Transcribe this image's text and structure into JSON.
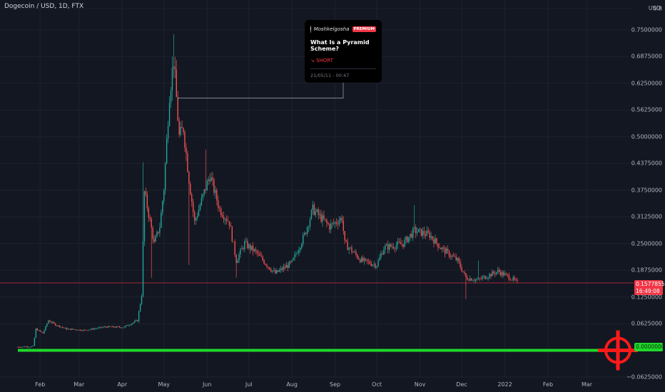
{
  "header": {
    "symbol_title": "Dogecoin / USD, 1D, FTX",
    "currency": "USD"
  },
  "price_tag": {
    "price": "0.1577855",
    "countdown": "16:49:08"
  },
  "support_tag": {
    "price": "0.0000000"
  },
  "idea": {
    "author": "Moshkelgosha",
    "badge": "PREMIUM",
    "title": "What Is a Pyramid Scheme?",
    "direction": "↘ SHORT",
    "date": "21/05/11 - 00:47"
  },
  "colors": {
    "background": "#131722",
    "up": "#26a69a",
    "down": "#ef5350",
    "support_line": "#1fd82a",
    "target_icon": "#ff1a1a",
    "price_line": "#f23645"
  },
  "icons": {
    "target": "crosshair-target-icon",
    "avatar": "user-avatar-icon"
  },
  "chart_data": {
    "type": "candlestick",
    "title": "Dogecoin / USD, 1D, FTX",
    "ylim": [
      -0.0625,
      0.8
    ],
    "y_ticks": [
      "0.8",
      "0.7500000",
      "0.6875000",
      "0.6250000",
      "0.5625000",
      "0.5000000",
      "0.4375000",
      "0.3750000",
      "0.3125000",
      "0.2500000",
      "0.1875000",
      "0.1250000",
      "0.0625000",
      "−0.0625000"
    ],
    "x_ticks": [
      "Feb",
      "Mar",
      "Apr",
      "May",
      "Jun",
      "Jul",
      "Aug",
      "Sep",
      "Oct",
      "Nov",
      "Dec",
      "2022",
      "Feb",
      "Mar"
    ],
    "current_price": 0.1577855,
    "support_level": 0.0,
    "anchors": [
      {
        "d": "2021-01-16",
        "p": 0.008
      },
      {
        "d": "2021-01-27",
        "p": 0.009
      },
      {
        "d": "2021-01-29",
        "p": 0.05
      },
      {
        "d": "2021-02-03",
        "p": 0.04
      },
      {
        "d": "2021-02-07",
        "p": 0.07
      },
      {
        "d": "2021-02-12",
        "p": 0.06
      },
      {
        "d": "2021-02-20",
        "p": 0.05
      },
      {
        "d": "2021-03-05",
        "p": 0.047
      },
      {
        "d": "2021-03-20",
        "p": 0.055
      },
      {
        "d": "2021-04-02",
        "p": 0.054
      },
      {
        "d": "2021-04-12",
        "p": 0.07
      },
      {
        "d": "2021-04-15",
        "p": 0.13
      },
      {
        "d": "2021-04-17",
        "p": 0.37
      },
      {
        "d": "2021-04-20",
        "p": 0.32
      },
      {
        "d": "2021-04-24",
        "p": 0.25
      },
      {
        "d": "2021-04-28",
        "p": 0.29
      },
      {
        "d": "2021-05-01",
        "p": 0.38
      },
      {
        "d": "2021-05-05",
        "p": 0.6
      },
      {
        "d": "2021-05-08",
        "p": 0.68
      },
      {
        "d": "2021-05-12",
        "p": 0.5
      },
      {
        "d": "2021-05-15",
        "p": 0.52
      },
      {
        "d": "2021-05-19",
        "p": 0.4
      },
      {
        "d": "2021-05-23",
        "p": 0.3
      },
      {
        "d": "2021-05-27",
        "p": 0.34
      },
      {
        "d": "2021-06-03",
        "p": 0.41
      },
      {
        "d": "2021-06-10",
        "p": 0.33
      },
      {
        "d": "2021-06-17",
        "p": 0.3
      },
      {
        "d": "2021-06-22",
        "p": 0.21
      },
      {
        "d": "2021-06-28",
        "p": 0.25
      },
      {
        "d": "2021-07-06",
        "p": 0.23
      },
      {
        "d": "2021-07-14",
        "p": 0.2
      },
      {
        "d": "2021-07-20",
        "p": 0.18
      },
      {
        "d": "2021-08-01",
        "p": 0.205
      },
      {
        "d": "2021-08-10",
        "p": 0.27
      },
      {
        "d": "2021-08-16",
        "p": 0.33
      },
      {
        "d": "2021-08-28",
        "p": 0.29
      },
      {
        "d": "2021-09-06",
        "p": 0.31
      },
      {
        "d": "2021-09-08",
        "p": 0.25
      },
      {
        "d": "2021-09-20",
        "p": 0.21
      },
      {
        "d": "2021-10-01",
        "p": 0.2
      },
      {
        "d": "2021-10-06",
        "p": 0.24
      },
      {
        "d": "2021-10-20",
        "p": 0.25
      },
      {
        "d": "2021-10-28",
        "p": 0.28
      },
      {
        "d": "2021-11-08",
        "p": 0.27
      },
      {
        "d": "2021-11-16",
        "p": 0.24
      },
      {
        "d": "2021-11-28",
        "p": 0.21
      },
      {
        "d": "2021-12-04",
        "p": 0.17
      },
      {
        "d": "2021-12-13",
        "p": 0.165
      },
      {
        "d": "2021-12-27",
        "p": 0.185
      },
      {
        "d": "2022-01-05",
        "p": 0.17
      },
      {
        "d": "2022-01-10",
        "p": 0.158
      }
    ],
    "spikes": [
      {
        "d": "2021-04-16",
        "h": 0.44
      },
      {
        "d": "2021-04-22",
        "l": 0.17
      },
      {
        "d": "2021-05-08",
        "h": 0.74
      },
      {
        "d": "2021-05-19",
        "l": 0.2
      },
      {
        "d": "2021-05-31",
        "h": 0.47
      },
      {
        "d": "2021-06-22",
        "l": 0.17
      },
      {
        "d": "2021-08-16",
        "h": 0.35
      },
      {
        "d": "2021-10-28",
        "h": 0.34
      },
      {
        "d": "2021-12-04",
        "l": 0.12
      },
      {
        "d": "2021-12-13",
        "h": 0.21
      }
    ],
    "idea_marker": {
      "d": "2021-05-11",
      "p": 0.587
    }
  }
}
